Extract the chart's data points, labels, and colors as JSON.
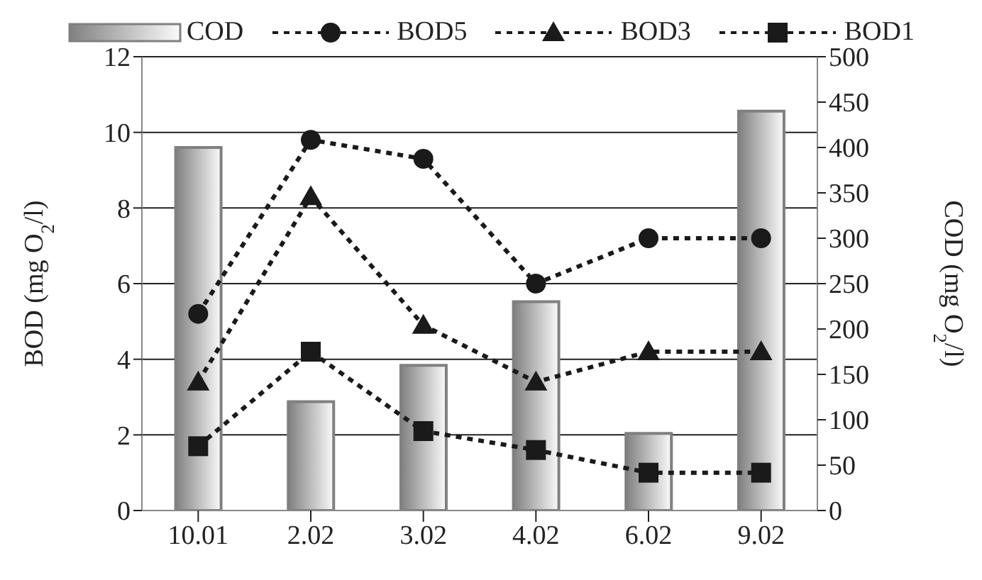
{
  "chart_data": {
    "type": "bar",
    "categories": [
      "10.01",
      "2.02",
      "3.02",
      "4.02",
      "6.02",
      "9.02"
    ],
    "ylabel": "BOD (mg O$_{2}$/l)",
    "y2label": "COD (mg O$_{2}$/l)",
    "ylim": [
      0,
      12
    ],
    "yticks": [
      0,
      2,
      4,
      6,
      8,
      10,
      12
    ],
    "y2lim": [
      0,
      500
    ],
    "y2ticks": [
      0,
      50,
      100,
      150,
      200,
      250,
      300,
      350,
      400,
      450,
      500
    ],
    "grid": "y",
    "legend": "top",
    "line_style": "dotted",
    "series": [
      {
        "name": "COD",
        "axis": "y2",
        "color": "#808080",
        "values": [
          400,
          120,
          160,
          230,
          85,
          440
        ]
      },
      {
        "name": "BOD5",
        "type": "line",
        "marker": "circle",
        "color": "#1a1a1a",
        "values": [
          5.2,
          9.8,
          9.3,
          6.0,
          7.2,
          7.2
        ]
      },
      {
        "name": "BOD3",
        "type": "line",
        "marker": "triangle",
        "color": "#1a1a1a",
        "values": [
          3.4,
          8.3,
          4.9,
          3.4,
          4.2,
          4.2
        ]
      },
      {
        "name": "BOD1",
        "type": "line",
        "marker": "square",
        "color": "#1a1a1a",
        "values": [
          1.7,
          4.2,
          2.1,
          1.6,
          1.0,
          1.0
        ]
      }
    ]
  }
}
